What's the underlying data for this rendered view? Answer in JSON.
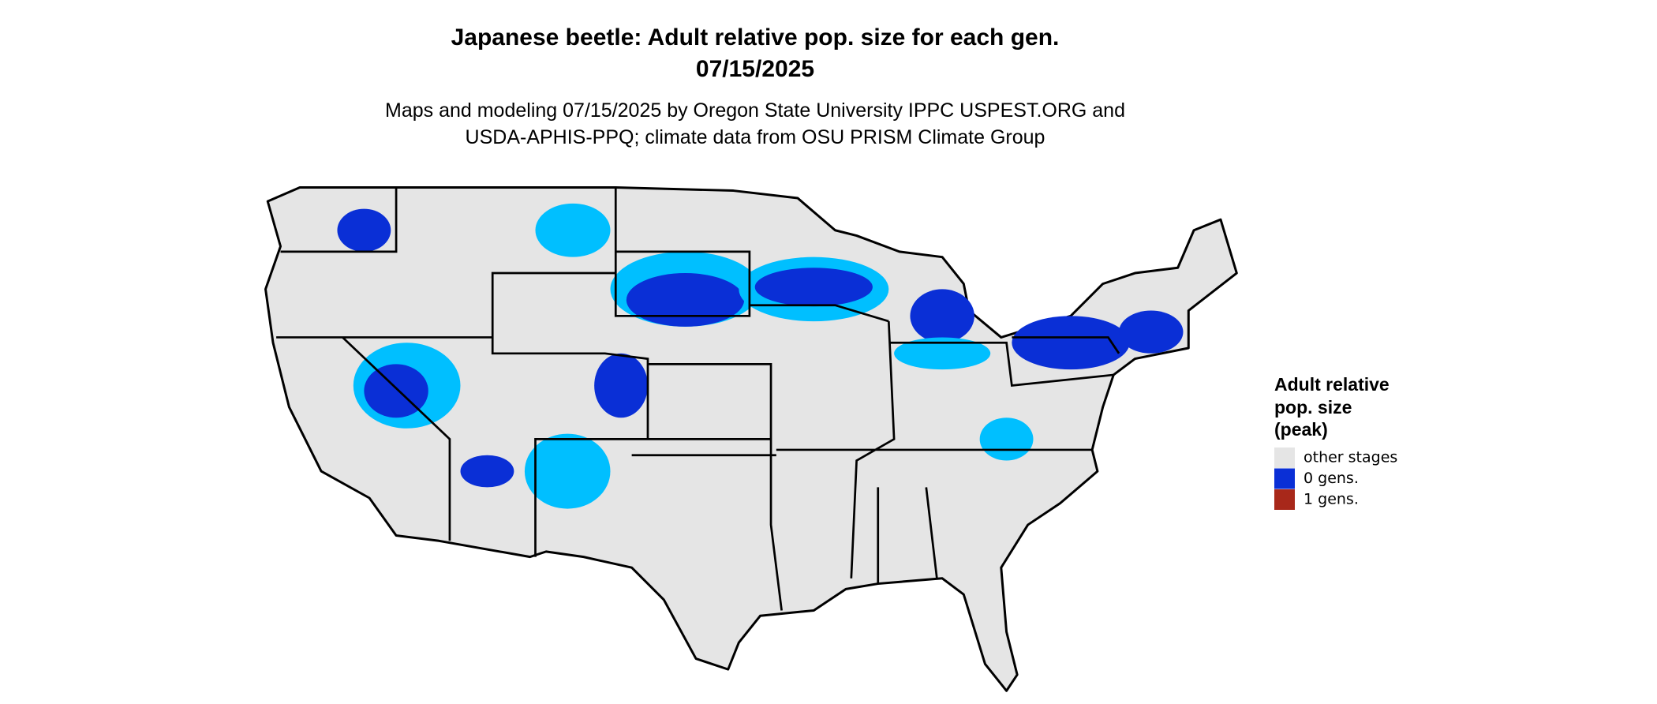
{
  "header": {
    "title": [
      "Japanese beetle: Adult relative pop. size for each gen.",
      "07/15/2025"
    ],
    "subtitle": [
      "Maps and modeling 07/15/2025 by Oregon State University IPPC USPEST.ORG and",
      "USDA-APHIS-PPQ; climate data from OSU PRISM Climate Group"
    ]
  },
  "legend": {
    "title": [
      "Adult relative",
      "pop. size",
      "(peak)"
    ],
    "items": [
      {
        "label": "other stages",
        "color": "#e5e5e5"
      },
      {
        "label": "0 gens.",
        "color": "#0a2fd6"
      },
      {
        "label": "1 gens.",
        "color": "#a8281a"
      }
    ]
  }
}
